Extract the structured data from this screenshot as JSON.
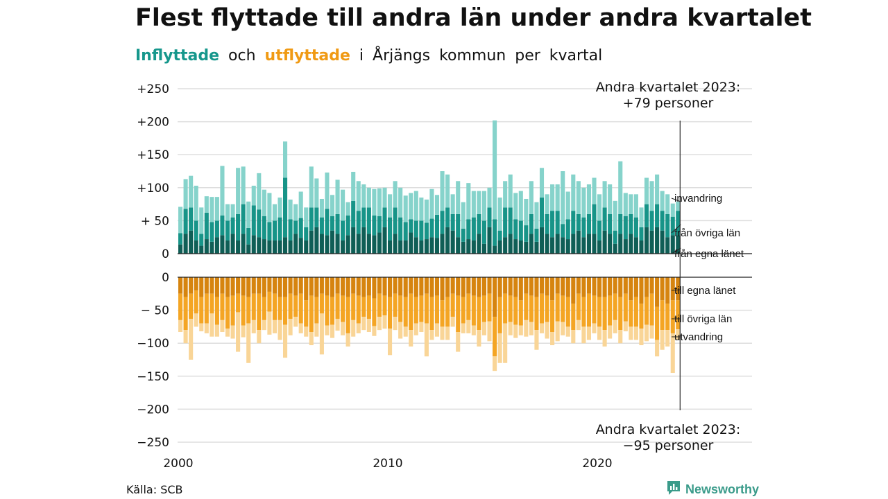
{
  "title": "Flest flyttade till andra län under andra kvartalet",
  "subtitle": {
    "part1": "Inflyttade",
    "part2": " och ",
    "part3": "utflyttade",
    "part4": " i Årjängs kommun per kvartal"
  },
  "source": "Källa: SCB",
  "brand": "Newsworthy",
  "colors": {
    "in_egna": "#0f5e56",
    "in_ovriga": "#179488",
    "in_invandring": "#86d3cb",
    "out_egna": "#d6840f",
    "out_ovriga": "#f4a524",
    "out_utvandring": "#f9d597",
    "grid": "#dddddd",
    "brand": "#3a9b8a"
  },
  "chart_data": {
    "type": "bar",
    "stacked": true,
    "x_start_year": 2000,
    "quarters_per_year": 4,
    "xticks": [
      "2000",
      "2010",
      "2020"
    ],
    "yticks_top": [
      "+250",
      "+200",
      "+150",
      "+100",
      "+ 50",
      "0"
    ],
    "yticks_bottom": [
      "0",
      "− 50",
      "−100",
      "−150",
      "−200",
      "−250"
    ],
    "ylim_top": [
      0,
      250
    ],
    "ylim_bottom": [
      -250,
      0
    ],
    "grid": true,
    "annotation_top": [
      "Andra kvartalet 2023:",
      "+79 personer"
    ],
    "annotation_bottom": [
      "Andra kvartalet 2023:",
      "−95 personer"
    ],
    "series_in": [
      {
        "name": "från egna länet",
        "values": [
          14,
          30,
          35,
          20,
          12,
          22,
          18,
          25,
          28,
          20,
          30,
          20,
          30,
          14,
          28,
          25,
          22,
          20,
          20,
          20,
          25,
          20,
          30,
          24,
          20,
          35,
          40,
          30,
          28,
          35,
          30,
          20,
          28,
          40,
          30,
          40,
          30,
          28,
          32,
          40,
          20,
          30,
          20,
          20,
          32,
          25,
          20,
          22,
          25,
          24,
          30,
          40,
          35,
          25,
          18,
          22,
          20,
          30,
          15,
          40,
          12,
          20,
          25,
          30,
          22,
          20,
          18,
          30,
          18,
          40,
          30,
          25,
          30,
          25,
          22,
          30,
          35,
          25,
          30,
          30,
          20,
          35,
          30,
          15,
          30,
          22,
          30,
          25,
          20,
          40,
          35,
          40,
          35,
          25,
          28,
          28
        ]
      },
      {
        "name": "från övriga län",
        "values": [
          17,
          38,
          35,
          30,
          18,
          40,
          30,
          25,
          30,
          30,
          25,
          40,
          45,
          25,
          45,
          42,
          35,
          28,
          30,
          35,
          90,
          32,
          20,
          30,
          20,
          35,
          30,
          25,
          40,
          22,
          30,
          30,
          30,
          40,
          35,
          30,
          40,
          30,
          25,
          30,
          35,
          40,
          35,
          28,
          20,
          25,
          30,
          25,
          28,
          35,
          35,
          30,
          25,
          35,
          20,
          30,
          35,
          30,
          35,
          30,
          40,
          15,
          45,
          40,
          30,
          30,
          25,
          30,
          20,
          45,
          30,
          40,
          35,
          20,
          30,
          35,
          25,
          30,
          30,
          45,
          30,
          35,
          30,
          20,
          30,
          35,
          30,
          30,
          20,
          35,
          30,
          35,
          30,
          35,
          28,
          37
        ]
      },
      {
        "name": "invandring",
        "values": [
          40,
          45,
          48,
          53,
          40,
          25,
          38,
          36,
          75,
          25,
          20,
          70,
          57,
          40,
          30,
          55,
          40,
          44,
          25,
          30,
          55,
          30,
          25,
          40,
          30,
          62,
          44,
          28,
          55,
          32,
          52,
          47,
          20,
          44,
          45,
          35,
          30,
          40,
          42,
          30,
          35,
          40,
          45,
          40,
          40,
          45,
          35,
          35,
          45,
          30,
          60,
          50,
          30,
          50,
          40,
          55,
          40,
          35,
          45,
          30,
          150,
          50,
          40,
          50,
          40,
          45,
          40,
          50,
          40,
          45,
          30,
          40,
          40,
          80,
          42,
          55,
          50,
          45,
          45,
          40,
          40,
          40,
          45,
          45,
          80,
          35,
          30,
          35,
          30,
          40,
          45,
          45,
          30,
          30,
          20,
          14
        ]
      }
    ],
    "series_out": [
      {
        "name": "till egna länet",
        "values": [
          25,
          30,
          25,
          20,
          30,
          25,
          25,
          30,
          25,
          30,
          28,
          25,
          28,
          30,
          25,
          25,
          30,
          22,
          25,
          30,
          30,
          25,
          28,
          25,
          35,
          28,
          30,
          25,
          28,
          30,
          25,
          28,
          30,
          25,
          28,
          30,
          28,
          32,
          25,
          28,
          30,
          25,
          28,
          30,
          25,
          30,
          28,
          25,
          30,
          28,
          35,
          30,
          25,
          28,
          30,
          25,
          28,
          30,
          28,
          25,
          60,
          30,
          25,
          28,
          30,
          35,
          25,
          28,
          30,
          25,
          28,
          35,
          25,
          28,
          30,
          40,
          25,
          30,
          25,
          28,
          30,
          30,
          28,
          25,
          30,
          25,
          35,
          30,
          40,
          30,
          25,
          45,
          35,
          40,
          35,
          35
        ]
      },
      {
        "name": "till övriga län",
        "values": [
          40,
          50,
          38,
          35,
          40,
          45,
          30,
          42,
          40,
          48,
          45,
          28,
          45,
          40,
          40,
          55,
          35,
          30,
          40,
          35,
          42,
          38,
          32,
          45,
          40,
          55,
          40,
          30,
          45,
          42,
          38,
          40,
          55,
          40,
          42,
          30,
          35,
          42,
          35,
          30,
          48,
          35,
          40,
          45,
          55,
          40,
          40,
          45,
          50,
          42,
          40,
          45,
          35,
          55,
          40,
          40,
          45,
          50,
          40,
          42,
          60,
          55,
          45,
          40,
          42,
          38,
          40,
          40,
          50,
          45,
          40,
          48,
          42,
          40,
          45,
          40,
          40,
          45,
          50,
          42,
          45,
          50,
          45,
          40,
          50,
          42,
          40,
          45,
          38,
          42,
          48,
          50,
          45,
          40,
          50,
          44
        ]
      },
      {
        "name": "utvandring",
        "values": [
          18,
          20,
          62,
          20,
          12,
          15,
          35,
          18,
          18,
          12,
          20,
          60,
          18,
          60,
          20,
          20,
          15,
          35,
          20,
          30,
          50,
          25,
          15,
          15,
          15,
          20,
          20,
          62,
          15,
          20,
          18,
          20,
          20,
          25,
          15,
          20,
          20,
          15,
          20,
          20,
          40,
          20,
          25,
          15,
          25,
          18,
          15,
          50,
          15,
          20,
          20,
          20,
          15,
          30,
          15,
          20,
          15,
          25,
          20,
          30,
          22,
          45,
          60,
          20,
          20,
          15,
          25,
          20,
          30,
          15,
          25,
          20,
          30,
          20,
          15,
          20,
          15,
          25,
          20,
          15,
          20,
          25,
          20,
          20,
          20,
          15,
          20,
          20,
          25,
          25,
          20,
          25,
          30,
          25,
          60,
          16
        ]
      }
    ]
  }
}
